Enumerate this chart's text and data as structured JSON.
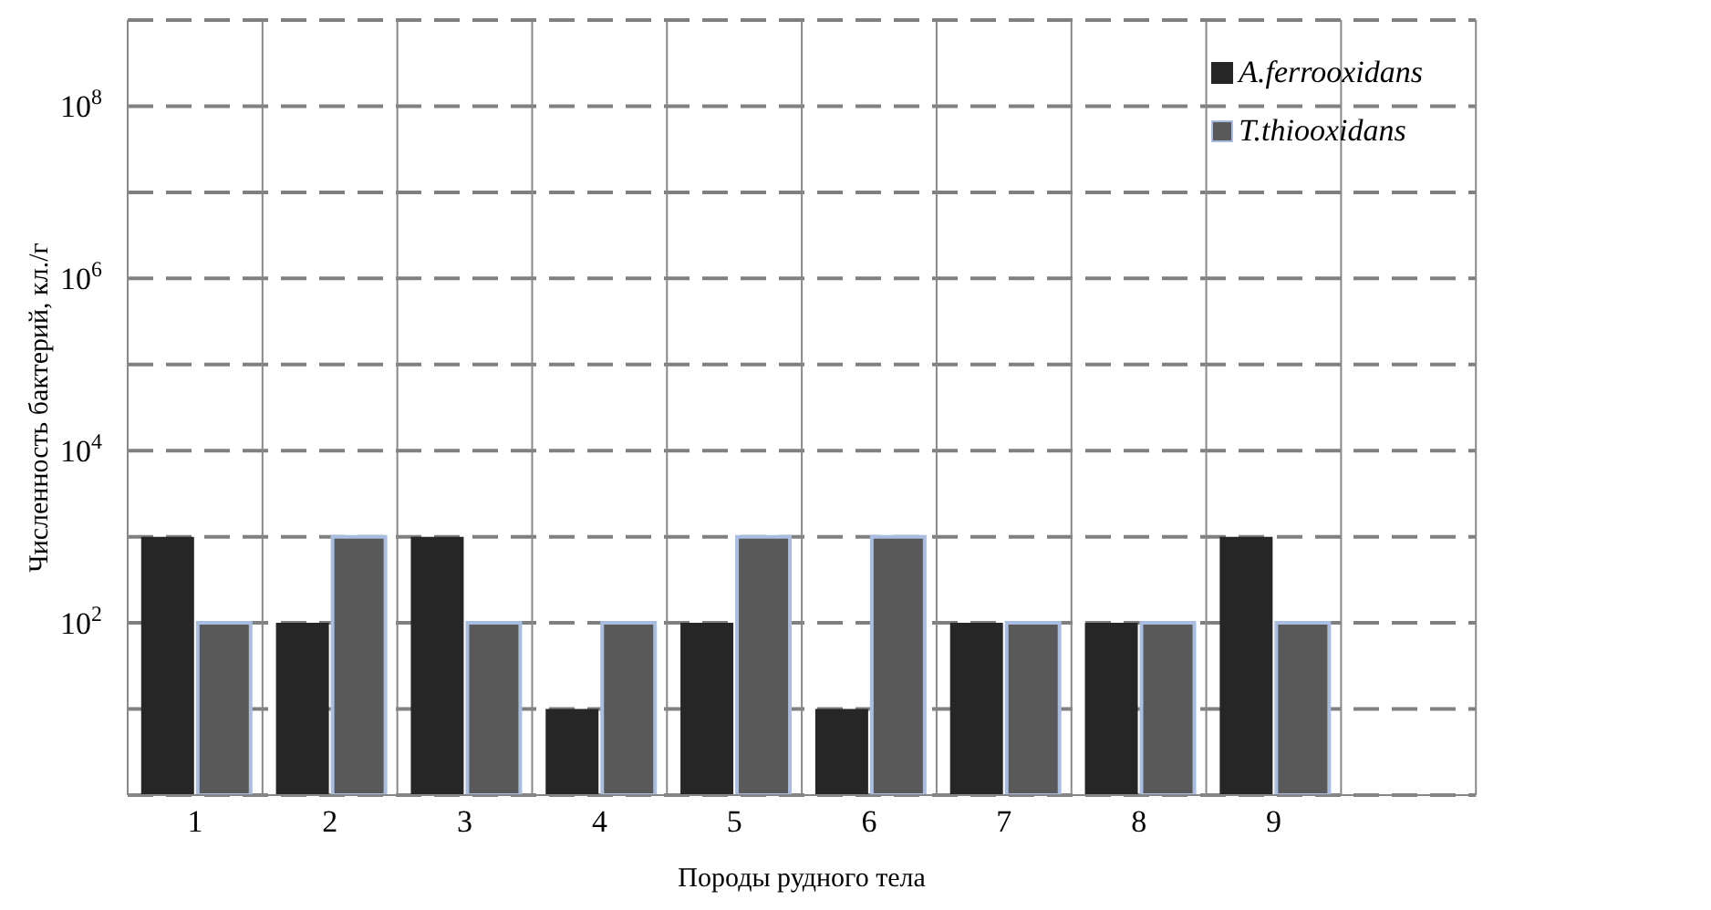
{
  "chart_data": {
    "type": "bar",
    "xlabel": "Породы рудного тела",
    "ylabel": "Численность бактерий, кл./г",
    "categories": [
      "1",
      "2",
      "3",
      "4",
      "5",
      "6",
      "7",
      "8",
      "9",
      null
    ],
    "series": [
      {
        "name": "A.ferrooxidans",
        "color": "#262626",
        "values": [
          1000,
          100,
          1000,
          10,
          100,
          10,
          100,
          100,
          1000,
          null
        ]
      },
      {
        "name": "T.thiooxidans",
        "color": "#595959",
        "values": [
          100,
          1000,
          100,
          100,
          1000,
          1000,
          100,
          100,
          100,
          null
        ]
      }
    ],
    "log": true,
    "ylim": [
      1,
      1000000000
    ],
    "yticks": [
      {
        "value": 1,
        "label": null
      },
      {
        "value": 10,
        "label": null
      },
      {
        "value": 100,
        "label": "10$^{2}$"
      },
      {
        "value": 1000,
        "label": null
      },
      {
        "value": 10000,
        "label": "10$^{4}$"
      },
      {
        "value": 100000,
        "label": null
      },
      {
        "value": 1000000,
        "label": "10$^{6}$"
      },
      {
        "value": 10000000,
        "label": null
      },
      {
        "value": 100000000,
        "label": "10$^{8}$"
      },
      {
        "value": 1000000000,
        "label": null
      }
    ],
    "grid": true,
    "legend": "top right"
  }
}
